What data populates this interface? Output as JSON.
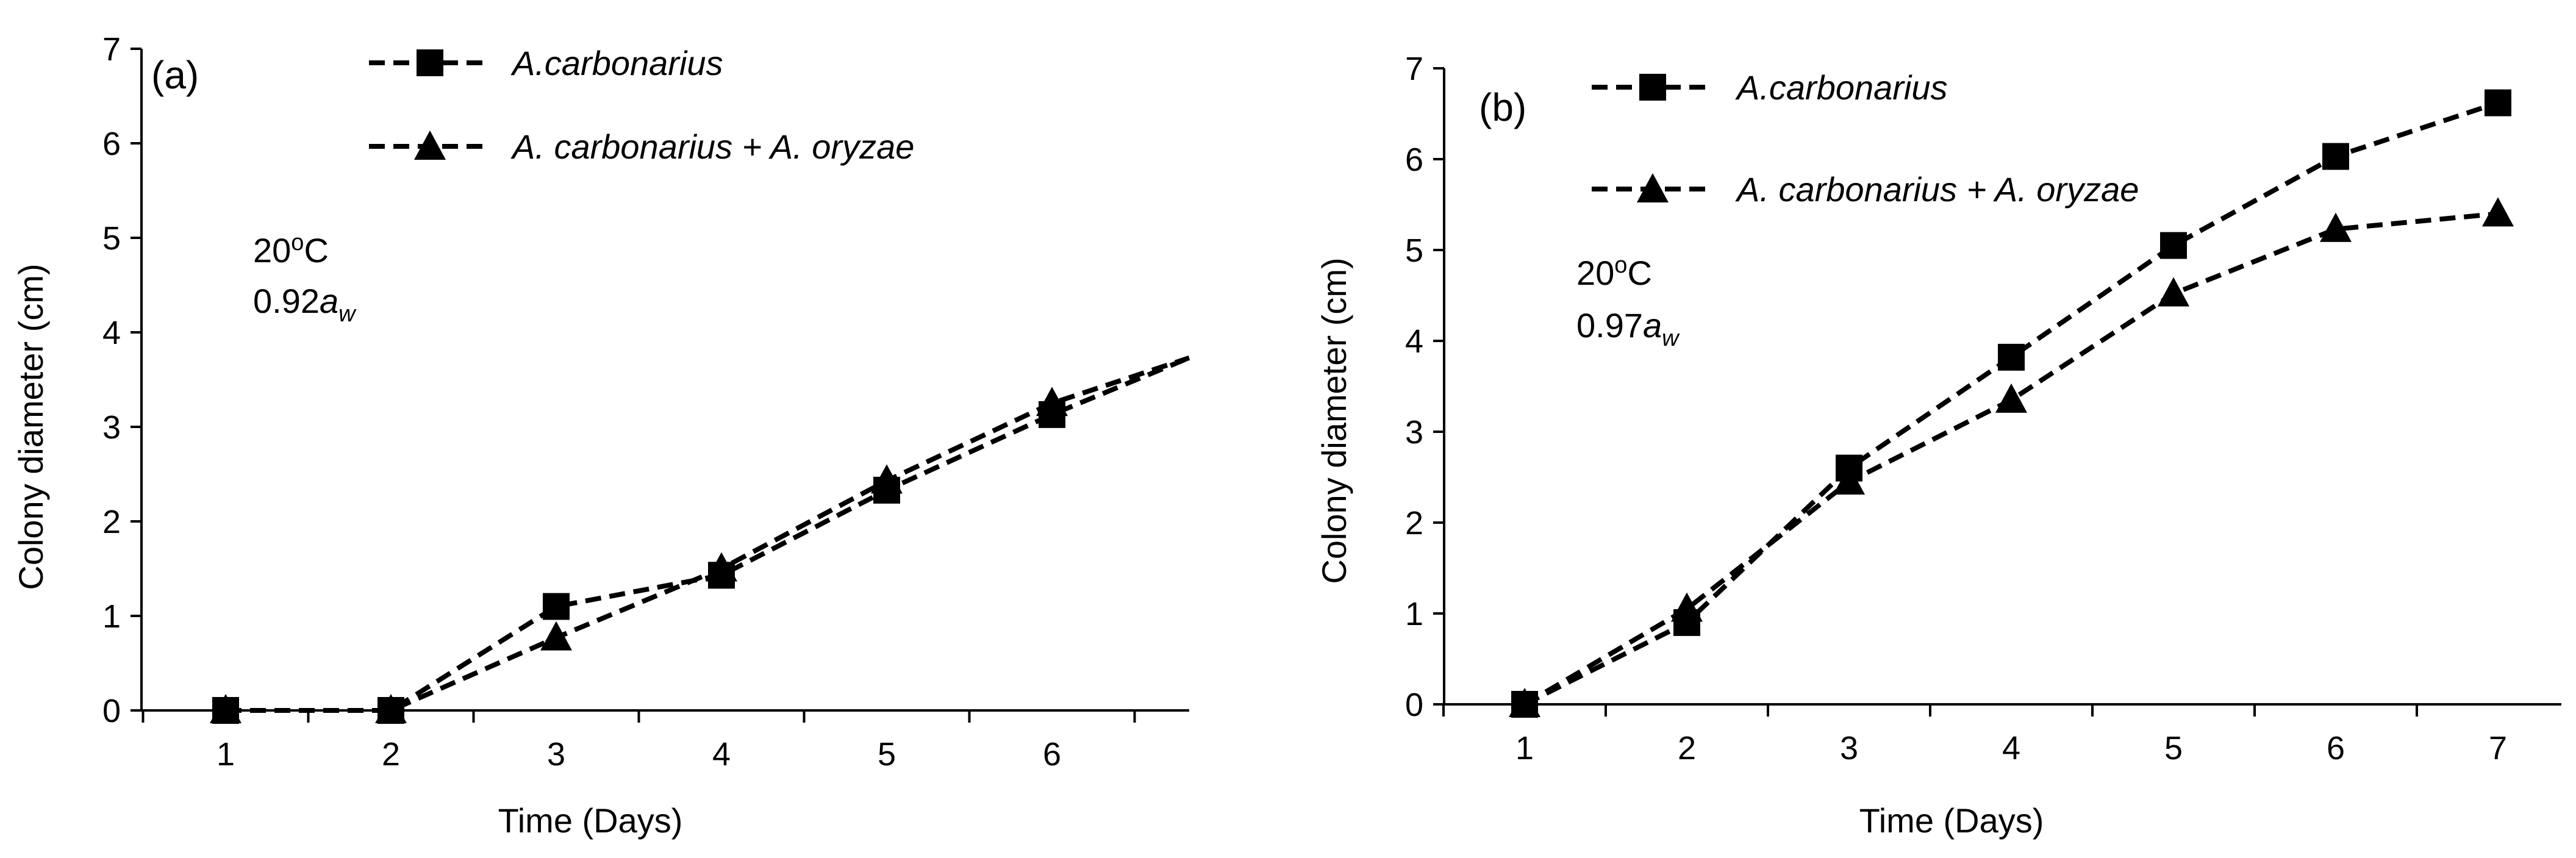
{
  "figure": {
    "panels": [
      {
        "label": "(a)",
        "temperature": "20",
        "temperature_sup": "o",
        "temperature_unit": "C",
        "aw_value": "0.92",
        "aw_symbol": "a",
        "aw_sub": "w",
        "legend": [
          "A.carbonarius",
          "A. carbonarius + A. oryzae"
        ]
      },
      {
        "label": "(b)",
        "temperature": "20",
        "temperature_sup": "o",
        "temperature_unit": "C",
        "aw_value": "0.97",
        "aw_symbol": "a",
        "aw_sub": "w",
        "legend": [
          "A.carbonarius",
          "A. carbonarius + A. oryzae"
        ]
      }
    ]
  },
  "chart_data": [
    {
      "type": "line",
      "panel": "(a)",
      "title": "",
      "xlabel": "Time (Days)",
      "ylabel": "Colony diameter (cm)",
      "categories": [
        "1",
        "2",
        "3",
        "4",
        "5",
        "6"
      ],
      "x_axis_extends_past_last_category": true,
      "ylim": [
        0,
        7
      ],
      "yticks": [
        0,
        1,
        2,
        3,
        4,
        5,
        6,
        7
      ],
      "legend_position": "top",
      "series": [
        {
          "name": "A.carbonarius",
          "marker": "square",
          "line_style": "dashed",
          "values": [
            0,
            0,
            1.1,
            1.43,
            2.33,
            3.13
          ],
          "continues_to": 3.73
        },
        {
          "name": "A. carbonarius + A. oryzae",
          "marker": "triangle",
          "line_style": "dashed",
          "values": [
            0,
            0,
            0.77,
            1.5,
            2.43,
            3.25
          ],
          "continues_to": 3.73
        }
      ]
    },
    {
      "type": "line",
      "panel": "(b)",
      "title": "",
      "xlabel": "Time (Days)",
      "ylabel": "Colony diameter (cm)",
      "categories": [
        "1",
        "2",
        "3",
        "4",
        "5",
        "6",
        "7"
      ],
      "ylim": [
        0,
        7
      ],
      "yticks": [
        0,
        1,
        2,
        3,
        4,
        5,
        6,
        7
      ],
      "legend_position": "top",
      "series": [
        {
          "name": "A.carbonarius",
          "marker": "square",
          "line_style": "dashed",
          "values": [
            0,
            0.9,
            2.6,
            3.82,
            5.05,
            6.03,
            6.62
          ]
        },
        {
          "name": "A. carbonarius + A. oryzae",
          "marker": "triangle",
          "line_style": "dashed",
          "values": [
            0,
            1.05,
            2.45,
            3.35,
            4.52,
            5.23,
            5.4
          ]
        }
      ]
    }
  ]
}
